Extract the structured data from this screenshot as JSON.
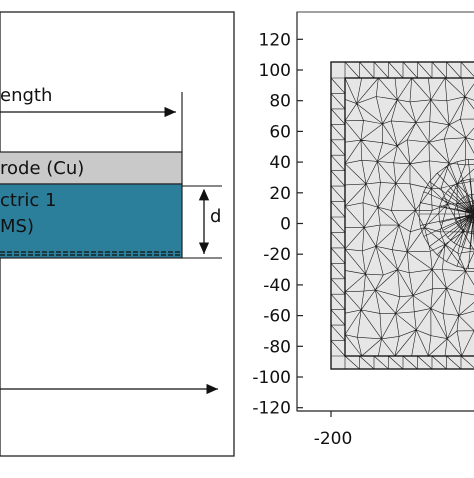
{
  "schematic": {
    "length_label": "ength",
    "electrode_label": "rode (Cu)",
    "dielectric_label_line1": "ctric 1",
    "dielectric_label_line2": "MS)",
    "thickness_label": "d",
    "colors": {
      "electrode_fill": "#c9c9c9",
      "dielectric_fill": "#2b7f9b",
      "frame": "#222222"
    }
  },
  "mesh_plot": {
    "y_ticks": [
      "120",
      "100",
      "80",
      "60",
      "40",
      "20",
      "0",
      "-20",
      "-40",
      "-60",
      "-80",
      "-100",
      "-120"
    ],
    "x_ticks": [
      "-200"
    ],
    "colors": {
      "mesh_fill": "#e6e6e6",
      "mesh_lines": "#1b1b1b",
      "frame": "#222222"
    }
  }
}
